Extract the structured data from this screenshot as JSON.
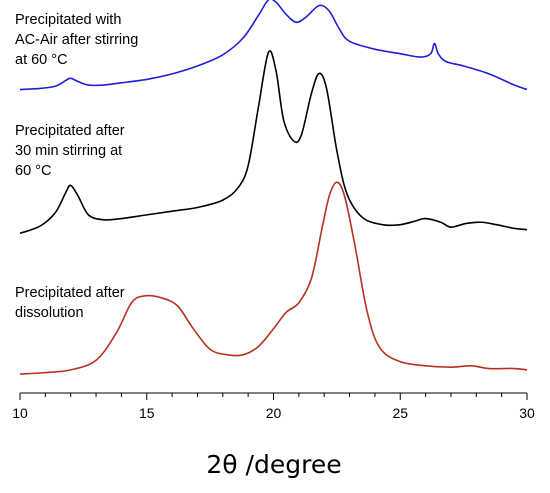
{
  "chart_data": {
    "type": "line",
    "title": "",
    "xlabel": "2θ /degree",
    "ylabel": "",
    "xlim": [
      10,
      30
    ],
    "x_ticks": [
      10,
      15,
      20,
      25,
      30
    ],
    "grid": false,
    "legend": "none",
    "y_axis_visible": false,
    "series": [
      {
        "name": "",
        "label_lines": [
          "Precipitated with",
          "AC-Air after stirring",
          "at 60 °C"
        ],
        "color": "#1f1fd6",
        "points": [
          [
            10,
            0.04
          ],
          [
            10.8,
            0.05
          ],
          [
            11.4,
            0.07
          ],
          [
            11.8,
            0.12
          ],
          [
            12.0,
            0.14
          ],
          [
            12.3,
            0.11
          ],
          [
            12.7,
            0.08
          ],
          [
            13.3,
            0.08
          ],
          [
            14,
            0.1
          ],
          [
            15,
            0.13
          ],
          [
            16,
            0.18
          ],
          [
            17,
            0.25
          ],
          [
            18,
            0.35
          ],
          [
            18.8,
            0.5
          ],
          [
            19.4,
            0.7
          ],
          [
            19.8,
            0.84
          ],
          [
            20.1,
            0.82
          ],
          [
            20.5,
            0.71
          ],
          [
            20.9,
            0.64
          ],
          [
            21.3,
            0.69
          ],
          [
            21.8,
            0.79
          ],
          [
            22.2,
            0.74
          ],
          [
            22.6,
            0.58
          ],
          [
            23,
            0.47
          ],
          [
            24,
            0.4
          ],
          [
            25,
            0.36
          ],
          [
            25.8,
            0.33
          ],
          [
            26.2,
            0.36
          ],
          [
            26.35,
            0.45
          ],
          [
            26.5,
            0.36
          ],
          [
            26.8,
            0.29
          ],
          [
            27.5,
            0.25
          ],
          [
            28.5,
            0.18
          ],
          [
            29.5,
            0.08
          ],
          [
            30,
            0.04
          ]
        ]
      },
      {
        "name": "",
        "label_lines": [
          "Precipitated after",
          "30 min stirring at",
          "60 °C"
        ],
        "color": "#000000",
        "points": [
          [
            10,
            0.03
          ],
          [
            10.8,
            0.09
          ],
          [
            11.4,
            0.2
          ],
          [
            11.8,
            0.36
          ],
          [
            12.0,
            0.42
          ],
          [
            12.3,
            0.33
          ],
          [
            12.7,
            0.18
          ],
          [
            13.3,
            0.14
          ],
          [
            14,
            0.15
          ],
          [
            15,
            0.18
          ],
          [
            16,
            0.21
          ],
          [
            17,
            0.24
          ],
          [
            18,
            0.3
          ],
          [
            18.6,
            0.4
          ],
          [
            19.0,
            0.58
          ],
          [
            19.4,
            1.05
          ],
          [
            19.8,
            1.5
          ],
          [
            20.1,
            1.35
          ],
          [
            20.4,
            0.95
          ],
          [
            20.8,
            0.78
          ],
          [
            21.1,
            0.83
          ],
          [
            21.5,
            1.17
          ],
          [
            21.8,
            1.33
          ],
          [
            22.1,
            1.2
          ],
          [
            22.5,
            0.7
          ],
          [
            22.9,
            0.35
          ],
          [
            23.5,
            0.16
          ],
          [
            24.3,
            0.1
          ],
          [
            25,
            0.1
          ],
          [
            25.6,
            0.13
          ],
          [
            26,
            0.15
          ],
          [
            26.6,
            0.12
          ],
          [
            27,
            0.08
          ],
          [
            27.6,
            0.11
          ],
          [
            28.2,
            0.12
          ],
          [
            28.8,
            0.1
          ],
          [
            29.5,
            0.07
          ],
          [
            30,
            0.06
          ]
        ]
      },
      {
        "name": "",
        "label_lines": [
          "Precipitated after",
          "dissolution"
        ],
        "color": "#b83020",
        "points": [
          [
            10,
            0.0
          ],
          [
            11,
            0.01
          ],
          [
            12,
            0.03
          ],
          [
            13,
            0.1
          ],
          [
            13.8,
            0.3
          ],
          [
            14.4,
            0.52
          ],
          [
            14.9,
            0.57
          ],
          [
            15.5,
            0.56
          ],
          [
            16.2,
            0.5
          ],
          [
            16.8,
            0.34
          ],
          [
            17.5,
            0.18
          ],
          [
            18.2,
            0.14
          ],
          [
            18.8,
            0.14
          ],
          [
            19.4,
            0.2
          ],
          [
            20,
            0.33
          ],
          [
            20.5,
            0.45
          ],
          [
            21,
            0.52
          ],
          [
            21.5,
            0.7
          ],
          [
            21.9,
            1.05
          ],
          [
            22.2,
            1.3
          ],
          [
            22.5,
            1.4
          ],
          [
            22.8,
            1.3
          ],
          [
            23.2,
            0.95
          ],
          [
            23.7,
            0.45
          ],
          [
            24.2,
            0.19
          ],
          [
            25,
            0.09
          ],
          [
            26,
            0.06
          ],
          [
            27,
            0.05
          ],
          [
            27.8,
            0.06
          ],
          [
            28.5,
            0.04
          ],
          [
            29.5,
            0.04
          ],
          [
            30,
            0.03
          ]
        ]
      }
    ]
  }
}
